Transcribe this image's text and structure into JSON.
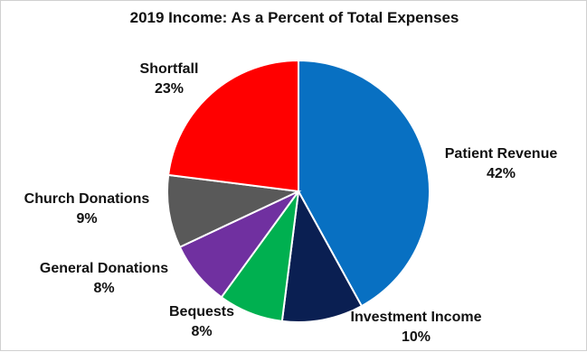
{
  "chart_data": {
    "type": "pie",
    "title": "2019 Income: As a Percent of Total Expenses",
    "slices": [
      {
        "label": "Patient Revenue",
        "value": 42,
        "value_label": "42%",
        "color": "#0870C2"
      },
      {
        "label": "Investment Income",
        "value": 10,
        "value_label": "10%",
        "color": "#0A1F52"
      },
      {
        "label": "Bequests",
        "value": 8,
        "value_label": "8%",
        "color": "#00B050"
      },
      {
        "label": "General Donations",
        "value": 8,
        "value_label": "8%",
        "color": "#7030A0"
      },
      {
        "label": "Church Donations",
        "value": 9,
        "value_label": "9%",
        "color": "#595959"
      },
      {
        "label": "Shortfall",
        "value": 23,
        "value_label": "23%",
        "color": "#FF0000"
      }
    ]
  }
}
